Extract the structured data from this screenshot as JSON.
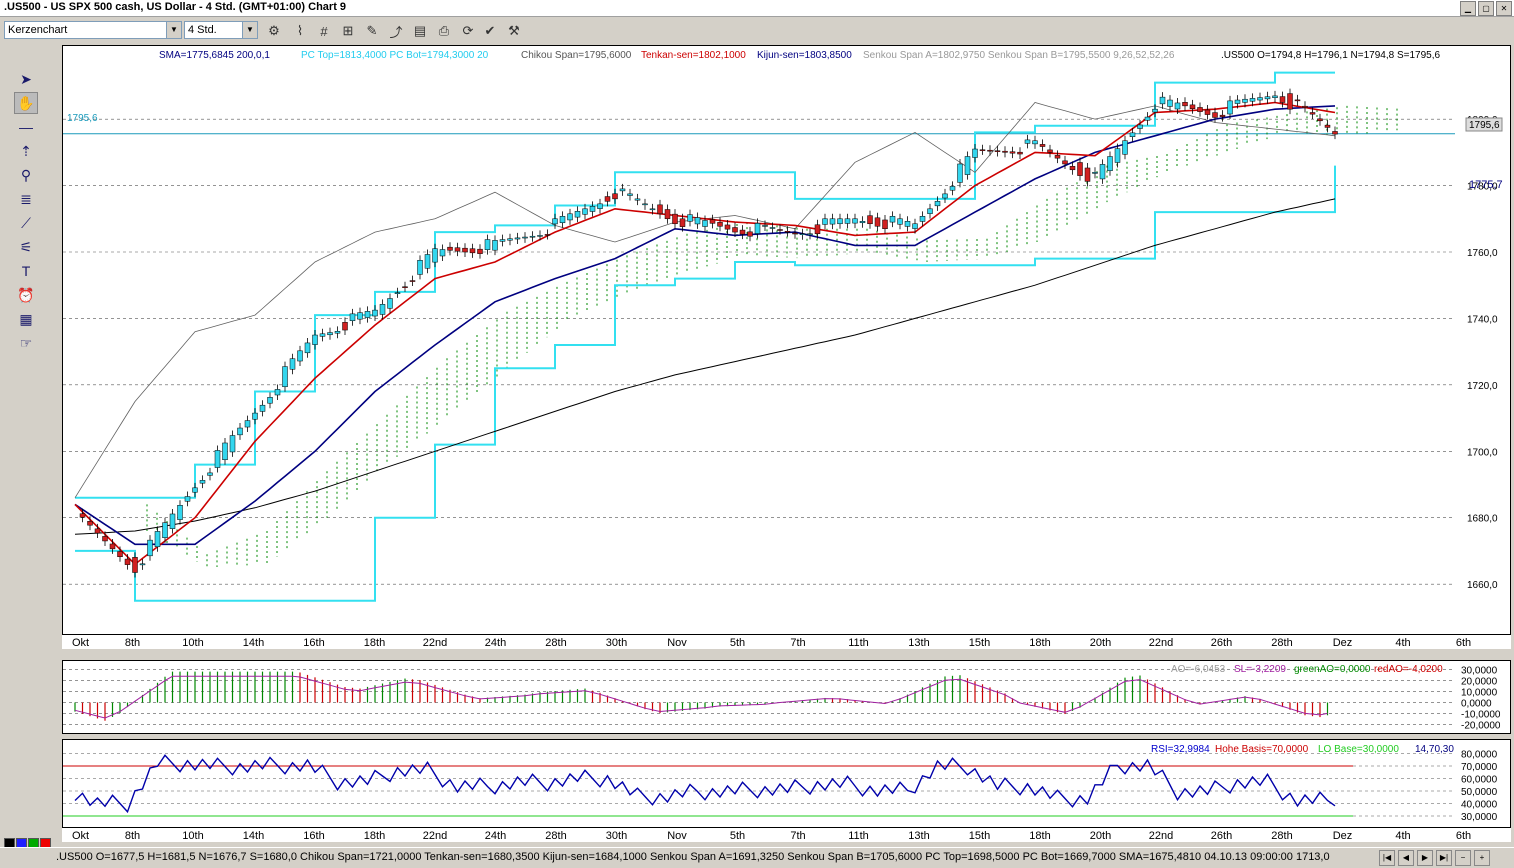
{
  "window": {
    "title": ".US500 - US SPX 500 cash, US Dollar - 4 Std. (GMT+01:00)   Chart 9"
  },
  "toolbar": {
    "chart_type": "Kerzenchart",
    "timeframe": "4 Std."
  },
  "main_chart": {
    "legend": {
      "sma": "SMA=1775,6845  200,0,1",
      "pc": "PC Top=1813,4000 PC Bot=1794,3000  20",
      "chikou": "Chikou Span=1795,6000",
      "tenkan": "Tenkan-sen=1802,1000",
      "kijun": "Kijun-sen=1803,8500",
      "senkou": "Senkou Span A=1802,9750 Senkou Span B=1795,5500  9,26,52,52,26",
      "ohlc": ".US500 O=1794,8 H=1796,1 N=1794,8 S=1795,6"
    },
    "hline_label": "1795,6",
    "price_tag": "1795,6",
    "sma_tag": "1775,7",
    "y_ticks": [
      "1800,0",
      "1780,0",
      "1760,0",
      "1740,0",
      "1720,0",
      "1700,0",
      "1680,0",
      "1660,0"
    ],
    "x_ticks": [
      "Okt",
      "8th",
      "10th",
      "14th",
      "16th",
      "18th",
      "22nd",
      "24th",
      "28th",
      "30th",
      "Nov",
      "5th",
      "7th",
      "11th",
      "13th",
      "15th",
      "18th",
      "20th",
      "22nd",
      "26th",
      "28th",
      "Dez",
      "4th",
      "6th"
    ]
  },
  "ao_panel": {
    "legend": {
      "ao": "AO=-6,0453",
      "sl": "SL=-3,2209",
      "green": "greenAO=0,0000",
      "red": "redAO=-4,0200"
    },
    "y_ticks": [
      "30,0000",
      "20,0000",
      "10,0000",
      "0,0000",
      "-10,0000",
      "-20,0000"
    ]
  },
  "rsi_panel": {
    "legend": {
      "rsi": "RSI=32,9984",
      "hohe": "Hohe Basis=70,0000",
      "lo": "LO Base=30,0000",
      "params": "14,70,30"
    },
    "y_ticks": [
      "80,0000",
      "70,0000",
      "60,0000",
      "50,0000",
      "40,0000",
      "30,0000"
    ]
  },
  "status": {
    "text": ".US500 O=1677,5 H=1681,5 N=1676,7 S=1680,0  Chikou Span=1721,0000 Tenkan-sen=1680,3500 Kijun-sen=1684,1000 Senkou Span A=1691,3250 Senkou Span B=1705,6000 PC Top=1698,5000 PC Bot=1669,7000 SMA=1675,4810  04.10.13 09:00:00 1713,0"
  },
  "colors": {
    "tenkan": "#cc0000",
    "kijun": "#000080",
    "pc": "#33e0f0",
    "chikou": "#606060",
    "cloud_up": "#008800",
    "cloud_down": "#cc0000",
    "rsi": "#0000aa"
  },
  "chart_data": {
    "type": "line",
    "title": ".US500 - US SPX 500 cash, US Dollar - 4 Std.",
    "xlabel": "",
    "ylabel": "",
    "categories": [
      "Okt",
      "8th",
      "10th",
      "14th",
      "16th",
      "18th",
      "22nd",
      "24th",
      "28th",
      "30th",
      "Nov",
      "5th",
      "7th",
      "11th",
      "13th",
      "15th",
      "18th",
      "20th",
      "22nd",
      "26th",
      "28th",
      "Dez"
    ],
    "ylim": [
      1648,
      1816
    ],
    "series": [
      {
        "name": "Close",
        "values": [
          1680,
          1665,
          1690,
          1712,
          1735,
          1742,
          1760,
          1762,
          1768,
          1778,
          1770,
          1767,
          1766,
          1770,
          1768,
          1790,
          1792,
          1782,
          1805,
          1802,
          1808,
          1796
        ]
      },
      {
        "name": "Tenkan-sen",
        "values": [
          1684,
          1666,
          1680,
          1703,
          1722,
          1738,
          1752,
          1757,
          1766,
          1773,
          1771,
          1769,
          1768,
          1765,
          1766,
          1780,
          1790,
          1789,
          1802,
          1803,
          1805,
          1802
        ]
      },
      {
        "name": "Kijun-sen",
        "values": [
          1684,
          1672,
          1672,
          1685,
          1700,
          1718,
          1732,
          1745,
          1752,
          1758,
          1767,
          1765,
          1766,
          1762,
          1762,
          1772,
          1782,
          1790,
          1795,
          1800,
          1803,
          1804
        ]
      },
      {
        "name": "SMA",
        "values": [
          1675,
          1676,
          1679,
          1683,
          1688,
          1694,
          1700,
          1706,
          1712,
          1718,
          1723,
          1727,
          1731,
          1735,
          1740,
          1745,
          1750,
          1756,
          1762,
          1767,
          1772,
          1776
        ]
      }
    ],
    "grid": true
  }
}
